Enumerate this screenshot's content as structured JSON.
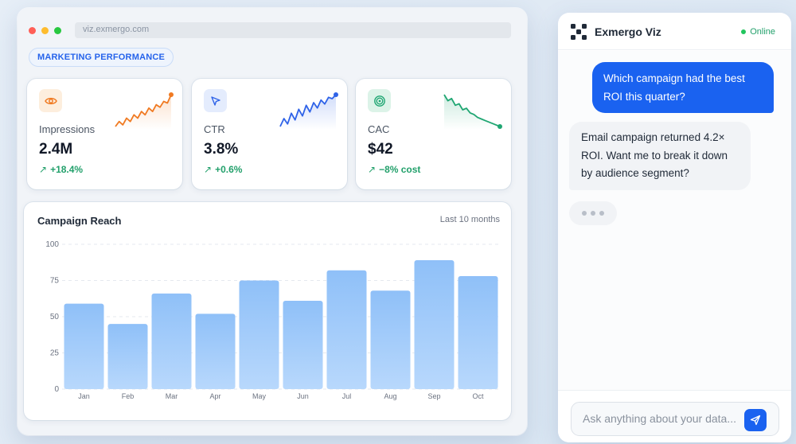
{
  "browser": {
    "url": "viz.exmergo.com",
    "dot_colors": [
      "#ff5f57",
      "#febc2e",
      "#28c840"
    ]
  },
  "dashboard": {
    "section_pill": "MARKETING PERFORMANCE",
    "kpis": [
      {
        "label": "Impressions",
        "value": "2.4M",
        "delta": "+18.4%",
        "icon": "eye-icon",
        "accent": "#f07a22",
        "icon_bg": "#fdeedd",
        "trend": [
          2,
          2.6,
          2.2,
          3,
          2.6,
          3.4,
          3,
          3.8,
          3.4,
          4.2,
          3.8,
          4.6,
          4.3,
          5,
          4.8,
          5.8
        ]
      },
      {
        "label": "CTR",
        "value": "3.8%",
        "delta": "+0.6%",
        "icon": "cursor-icon",
        "accent": "#2f63e8",
        "icon_bg": "#e4ecfd",
        "trend": [
          1.2,
          2.4,
          1.6,
          3.2,
          2.2,
          3.8,
          2.8,
          4.4,
          3.4,
          4.8,
          4,
          5.2,
          4.6,
          5.6,
          5.4,
          6
        ]
      },
      {
        "label": "CAC",
        "value": "$42",
        "delta": "−8% cost",
        "icon": "target-icon",
        "accent": "#1fa672",
        "icon_bg": "#dcf3e8",
        "trend": [
          6,
          5.2,
          5.5,
          4.6,
          4.8,
          4,
          4.2,
          3.6,
          3.4,
          3,
          2.8,
          2.6,
          2.4,
          2.2,
          2,
          1.8
        ]
      }
    ]
  },
  "chart_data": {
    "type": "bar",
    "title": "Campaign Reach",
    "subtitle": "Last 10 months",
    "categories": [
      "Jan",
      "Feb",
      "Mar",
      "Apr",
      "May",
      "Jun",
      "Jul",
      "Aug",
      "Sep",
      "Oct"
    ],
    "values": [
      59,
      45,
      66,
      52,
      75,
      61,
      82,
      68,
      89,
      78
    ],
    "ylim": [
      0,
      100
    ],
    "yticks": [
      0,
      25,
      50,
      75,
      100
    ],
    "grid": true,
    "bar_color": "#93c3f8"
  },
  "chat": {
    "title": "Exmergo Viz",
    "status": "Online",
    "messages": [
      {
        "role": "user",
        "text": "Which campaign had the best ROI this quarter?"
      },
      {
        "role": "assistant",
        "text": "Email campaign returned 4.2× ROI. Want me to break it down by audience segment?"
      }
    ],
    "input_placeholder": "Ask anything about your data...",
    "accent": "#1a62f0"
  }
}
